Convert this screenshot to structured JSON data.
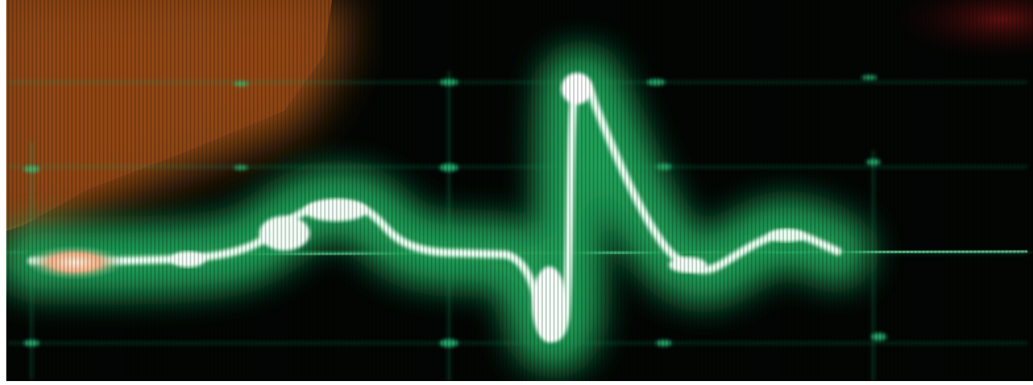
{
  "scene": {
    "subject": "oscilloscope-waveform-photo",
    "colors": {
      "screen_background": "#020503",
      "phosphor_glow": "#1fa35a",
      "trace_core": "#f2fff6",
      "graticule": "#17b06a",
      "ambient_orange": "#a8541a",
      "ambient_red": "#6a1010",
      "hotspot_warm": "#ffd8b0"
    },
    "trace_shape": "single-pulse-with-sharp-negative-dip-and-tall-positive-spike"
  }
}
